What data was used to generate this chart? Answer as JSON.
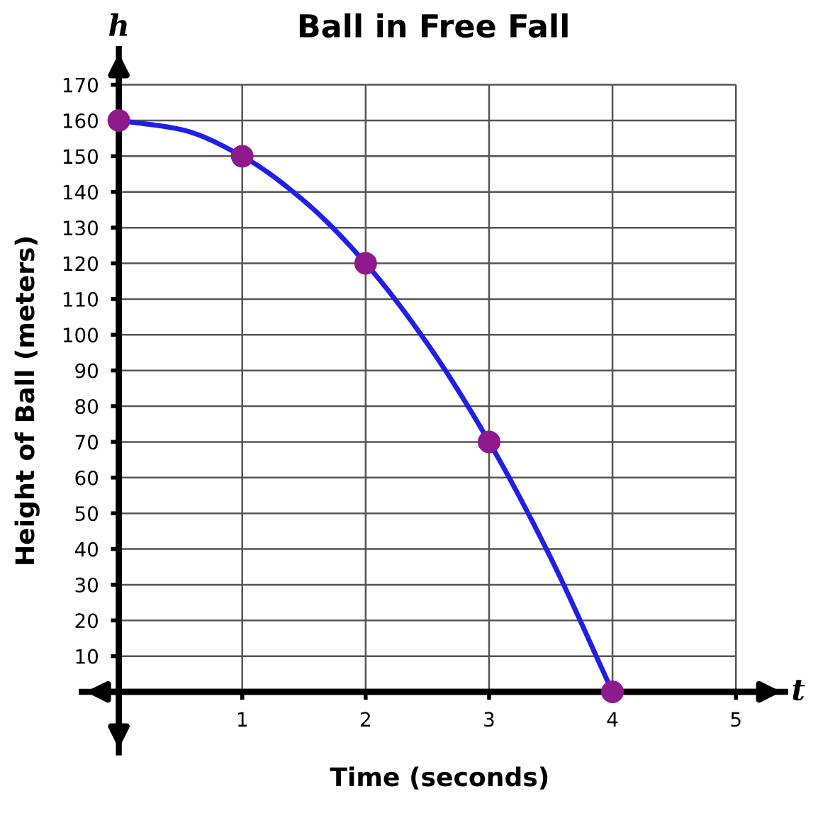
{
  "chart_data": {
    "type": "line",
    "title": "Ball in Free Fall",
    "xlabel": "Time (seconds)",
    "ylabel": "Height of Ball (meters)",
    "annotations": [
      "h",
      "t"
    ],
    "series": [
      {
        "color": "#1f1fe6",
        "x": [
          0,
          0.5,
          1,
          1.5,
          2,
          2.5,
          3,
          3.5,
          4
        ],
        "values": [
          160,
          157.5,
          150,
          137.5,
          120,
          97.5,
          70,
          37.5,
          0
        ],
        "marker": "none"
      },
      {
        "type": "scatter",
        "color": "#8e1a8e",
        "x": [
          0,
          1,
          2,
          3,
          4
        ],
        "values": [
          160,
          150,
          120,
          70,
          0
        ],
        "marker": "circle"
      }
    ],
    "xlim": [
      -0.3,
      5.4
    ],
    "ylim": [
      -17,
      180
    ],
    "xticks": [
      1,
      2,
      3,
      4,
      5
    ],
    "yticks": [
      10,
      20,
      30,
      40,
      50,
      60,
      70,
      80,
      90,
      100,
      110,
      120,
      130,
      140,
      150,
      160,
      170
    ],
    "grid": true,
    "legend": false
  }
}
